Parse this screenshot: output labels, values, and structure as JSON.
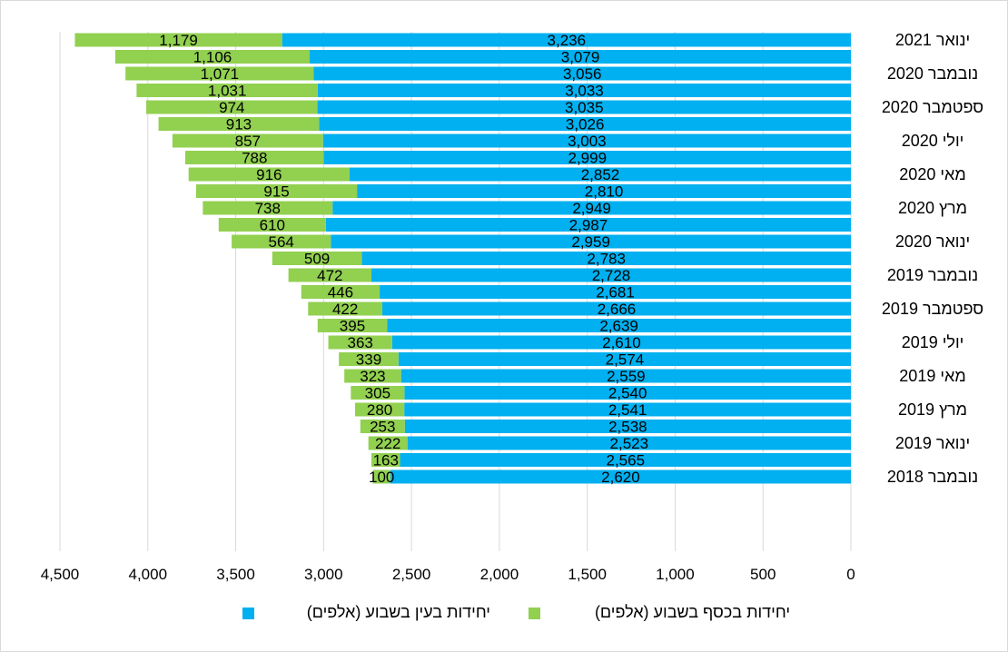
{
  "chart_data": {
    "type": "bar",
    "orientation": "horizontal",
    "stacked": true,
    "x_reversed": true,
    "xlim": [
      0,
      4500
    ],
    "x_ticks": [
      "4,500",
      "4,000",
      "3,500",
      "3,000",
      "2,500",
      "2,000",
      "1,500",
      "1,000",
      "500",
      "0"
    ],
    "x_tick_values": [
      4500,
      4000,
      3500,
      3000,
      2500,
      2000,
      1500,
      1000,
      500,
      0
    ],
    "grid": "vertical",
    "legend_position": "bottom",
    "categories": [
      "ינואר 2021",
      "",
      "נובמבר 2020",
      "",
      "ספטמבר 2020",
      "",
      "יולי 2020",
      "",
      "מאי 2020",
      "",
      "מרץ 2020",
      "",
      "ינואר 2020",
      "",
      "נובמבר 2019",
      "",
      "ספטמבר 2019",
      "",
      "יולי 2019",
      "",
      "מאי 2019",
      "",
      "מרץ 2019",
      "",
      "ינואר 2019",
      "",
      "נובמבר 2018"
    ],
    "series": [
      {
        "name": "יחידות בעין בשבוע (אלפים)",
        "color": "#00b0f0",
        "values": [
          3236,
          3079,
          3056,
          3033,
          3035,
          3026,
          3003,
          2999,
          2852,
          2810,
          2949,
          2987,
          2959,
          2783,
          2728,
          2681,
          2666,
          2639,
          2610,
          2574,
          2559,
          2540,
          2541,
          2538,
          2523,
          2565,
          2620
        ],
        "labels": [
          "3,236",
          "3,079",
          "3,056",
          "3,033",
          "3,035",
          "3,026",
          "3,003",
          "2,999",
          "2,852",
          "2,810",
          "2,949",
          "2,987",
          "2,959",
          "2,783",
          "2,728",
          "2,681",
          "2,666",
          "2,639",
          "2,610",
          "2,574",
          "2,559",
          "2,540",
          "2,541",
          "2,538",
          "2,523",
          "2,565",
          "2,620"
        ]
      },
      {
        "name": "יחידות בכסף בשבוע (אלפים)",
        "color": "#92d050",
        "values": [
          1179,
          1106,
          1071,
          1031,
          974,
          913,
          857,
          788,
          916,
          915,
          738,
          610,
          564,
          509,
          472,
          446,
          422,
          395,
          363,
          339,
          323,
          305,
          280,
          253,
          222,
          163,
          100
        ],
        "labels": [
          "1,179",
          "1,106",
          "1,071",
          "1,031",
          "974",
          "913",
          "857",
          "788",
          "916",
          "915",
          "738",
          "610",
          "564",
          "509",
          "472",
          "446",
          "422",
          "395",
          "363",
          "339",
          "323",
          "305",
          "280",
          "253",
          "222",
          "163",
          "100"
        ]
      }
    ],
    "colors": {
      "gridline": "#d9d9d9",
      "frame": "#d9d9d9"
    }
  }
}
